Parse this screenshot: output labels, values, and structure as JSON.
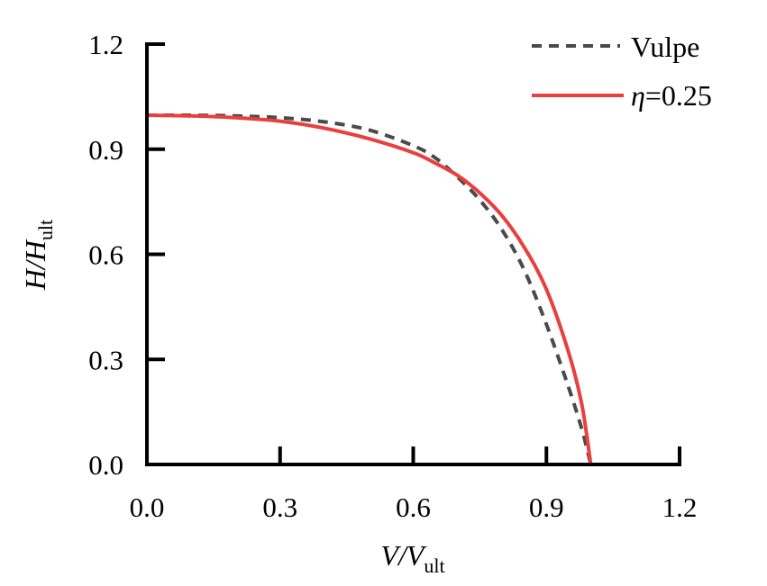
{
  "chart_data": {
    "type": "line",
    "title": "",
    "xlabel": "V/V_ult",
    "ylabel": "H/H_ult",
    "xlabel_parts": {
      "main": "V/V",
      "sub": "ult"
    },
    "ylabel_parts": {
      "main": "H/H",
      "sub": "ult"
    },
    "xlim": [
      0.0,
      1.2
    ],
    "ylim": [
      0.0,
      1.2
    ],
    "xticks": [
      "0.0",
      "0.3",
      "0.6",
      "0.9",
      "1.2"
    ],
    "yticks": [
      "0.0",
      "0.3",
      "0.6",
      "0.9",
      "1.2"
    ],
    "grid": false,
    "legend_position": "upper right",
    "series": [
      {
        "name": "Vulpe",
        "style": "dashed",
        "color": "#4a4a4a",
        "x": [
          0.0,
          0.1,
          0.2,
          0.3,
          0.4,
          0.5,
          0.6,
          0.65,
          0.7,
          0.75,
          0.8,
          0.85,
          0.9,
          0.95,
          0.98,
          1.0
        ],
        "y": [
          0.997,
          0.997,
          0.995,
          0.99,
          0.978,
          0.955,
          0.91,
          0.875,
          0.82,
          0.755,
          0.67,
          0.555,
          0.4,
          0.22,
          0.1,
          0.0
        ]
      },
      {
        "name": "η=0.25",
        "style": "solid",
        "color": "#e8403f",
        "x": [
          0.0,
          0.1,
          0.2,
          0.3,
          0.4,
          0.5,
          0.6,
          0.65,
          0.7,
          0.75,
          0.8,
          0.85,
          0.9,
          0.95,
          0.98,
          1.0
        ],
        "y": [
          0.997,
          0.995,
          0.99,
          0.98,
          0.96,
          0.93,
          0.89,
          0.86,
          0.825,
          0.775,
          0.71,
          0.62,
          0.5,
          0.32,
          0.17,
          0.0
        ]
      }
    ]
  },
  "legend": {
    "items": [
      {
        "label": "Vulpe"
      },
      {
        "label_symbol": "η",
        "label_rest": "=0.25"
      }
    ]
  }
}
